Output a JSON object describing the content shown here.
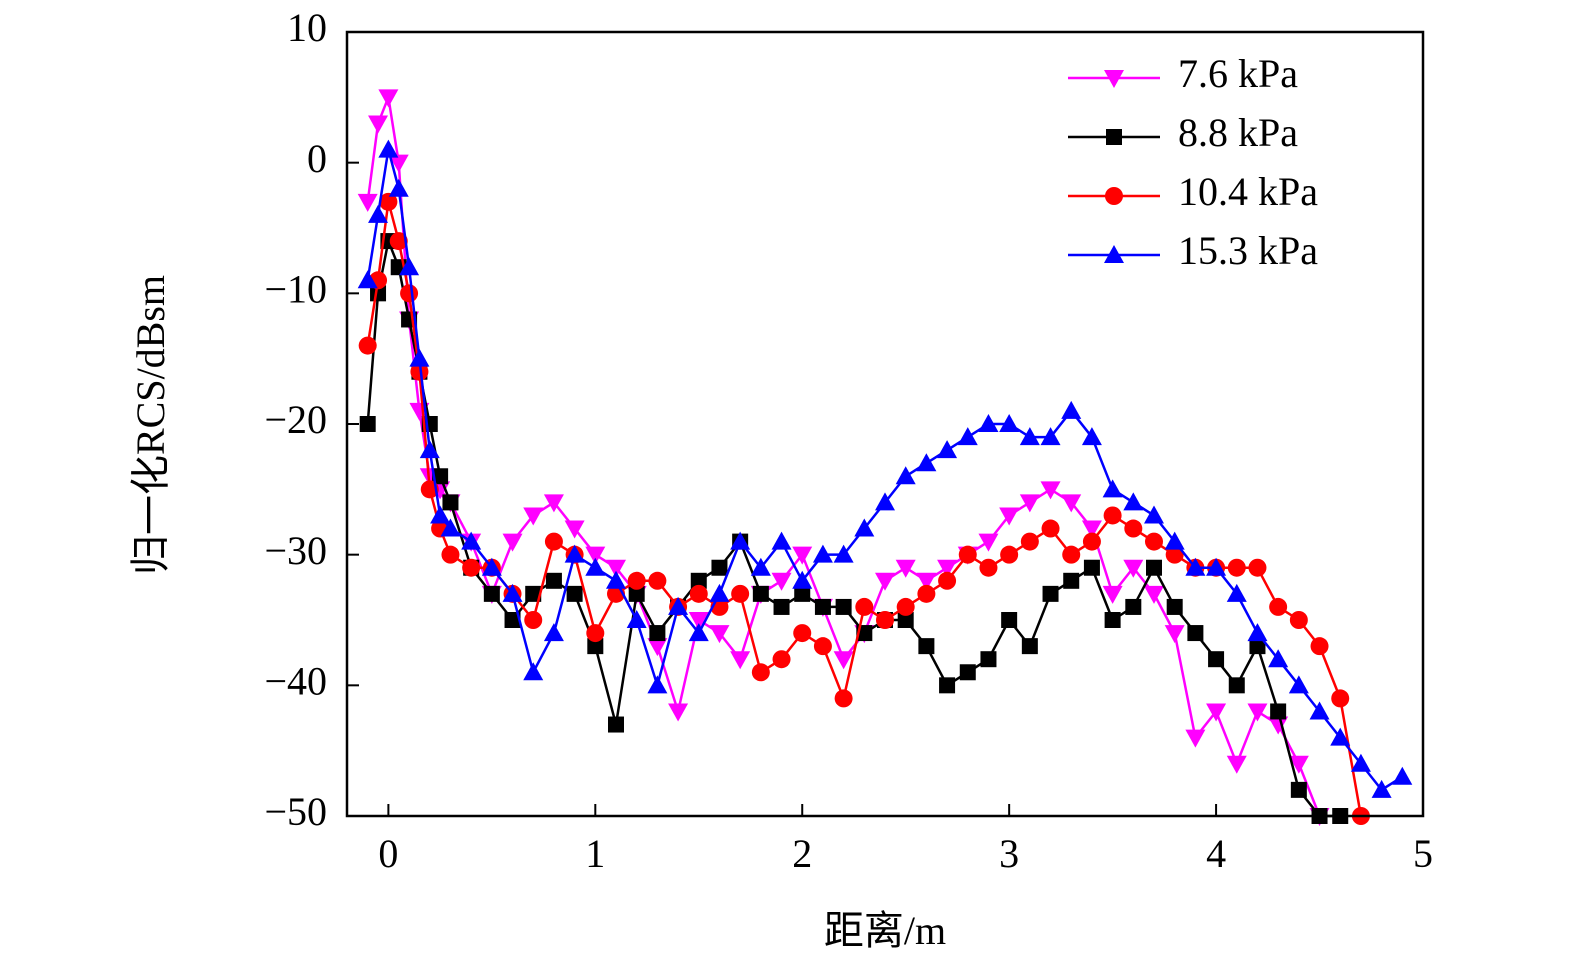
{
  "chart_data": {
    "type": "line",
    "xlabel": "距离/m",
    "ylabel": "归一化RCS/dBsm",
    "x": [
      -0.1,
      -0.05,
      0,
      0.05,
      0.1,
      0.15,
      0.2,
      0.25,
      0.3,
      0.4,
      0.5,
      0.6,
      0.7,
      0.8,
      0.9,
      1.0,
      1.1,
      1.2,
      1.3,
      1.4,
      1.5,
      1.6,
      1.7,
      1.8,
      1.9,
      2.0,
      2.1,
      2.2,
      2.3,
      2.4,
      2.5,
      2.6,
      2.7,
      2.8,
      2.9,
      3.0,
      3.1,
      3.2,
      3.3,
      3.4,
      3.5,
      3.6,
      3.7,
      3.8,
      3.9,
      4.0,
      4.1,
      4.2,
      4.3,
      4.4,
      4.5,
      4.6,
      4.7,
      4.8,
      4.9
    ],
    "series": [
      {
        "name": "7.6 kPa",
        "color": "#ff00ff",
        "marker": "triangle-down",
        "values": [
          -3,
          3,
          5,
          0,
          -12,
          -19,
          -24,
          -25,
          -26,
          -29,
          -33,
          -29,
          -27,
          -26,
          -28,
          -30,
          -31,
          -33,
          -37,
          -42,
          -35,
          -36,
          -38,
          -33,
          -32,
          -30,
          -34,
          -38,
          -36,
          -32,
          -31,
          -32,
          -31,
          -30,
          -29,
          -27,
          -26,
          -25,
          -26,
          -28,
          -33,
          -31,
          -33,
          -36,
          -44,
          -42,
          -46,
          -42,
          -43,
          -46,
          -50,
          null,
          null,
          null,
          null
        ]
      },
      {
        "name": "8.8 kPa",
        "color": "#000000",
        "marker": "square",
        "values": [
          -20,
          -10,
          -6,
          -8,
          -12,
          -16,
          -20,
          -24,
          -26,
          -31,
          -33,
          -35,
          -33,
          -32,
          -33,
          -37,
          -43,
          -33,
          -36,
          -34,
          -32,
          -31,
          -29,
          -33,
          -34,
          -33,
          -34,
          -34,
          -36,
          -35,
          -35,
          -37,
          -40,
          -39,
          -38,
          -35,
          -37,
          -33,
          -32,
          -31,
          -35,
          -34,
          -31,
          -34,
          -36,
          -38,
          -40,
          -37,
          -42,
          -48,
          -50,
          -50,
          null,
          null,
          null
        ]
      },
      {
        "name": "10.4 kPa",
        "color": "#ff0000",
        "marker": "circle",
        "values": [
          -14,
          -9,
          -3,
          -6,
          -10,
          -16,
          -25,
          -28,
          -30,
          -31,
          -31,
          -33,
          -35,
          -29,
          -30,
          -36,
          -33,
          -32,
          -32,
          -34,
          -33,
          -34,
          -33,
          -39,
          -38,
          -36,
          -37,
          -41,
          -34,
          -35,
          -34,
          -33,
          -32,
          -30,
          -31,
          -30,
          -29,
          -28,
          -30,
          -29,
          -27,
          -28,
          -29,
          -30,
          -31,
          -31,
          -31,
          -31,
          -34,
          -35,
          -37,
          -41,
          -50,
          null,
          null
        ]
      },
      {
        "name": "15.3 kPa",
        "color": "#0000ff",
        "marker": "triangle-up",
        "values": [
          -9,
          -4,
          1,
          -2,
          -8,
          -15,
          -22,
          -27,
          -28,
          -29,
          -31,
          -33,
          -39,
          -36,
          -30,
          -31,
          -32,
          -35,
          -40,
          -34,
          -36,
          -33,
          -29,
          -31,
          -29,
          -32,
          -30,
          -30,
          -28,
          -26,
          -24,
          -23,
          -22,
          -21,
          -20,
          -20,
          -21,
          -21,
          -19,
          -21,
          -25,
          -26,
          -27,
          -29,
          -31,
          -31,
          -33,
          -36,
          -38,
          -40,
          -42,
          -44,
          -46,
          -48,
          -47
        ]
      }
    ],
    "xlim": [
      -0.2,
      5
    ],
    "ylim": [
      -50,
      10
    ],
    "xticks": [
      0,
      1,
      2,
      3,
      4,
      5
    ],
    "yticks": [
      {
        "value": -50,
        "label": "−50"
      },
      {
        "value": -40,
        "label": "−40"
      },
      {
        "value": -30,
        "label": "−30"
      },
      {
        "value": -20,
        "label": "−20"
      },
      {
        "value": -10,
        "label": "−10"
      },
      0,
      10
    ],
    "legend": "upper right"
  }
}
